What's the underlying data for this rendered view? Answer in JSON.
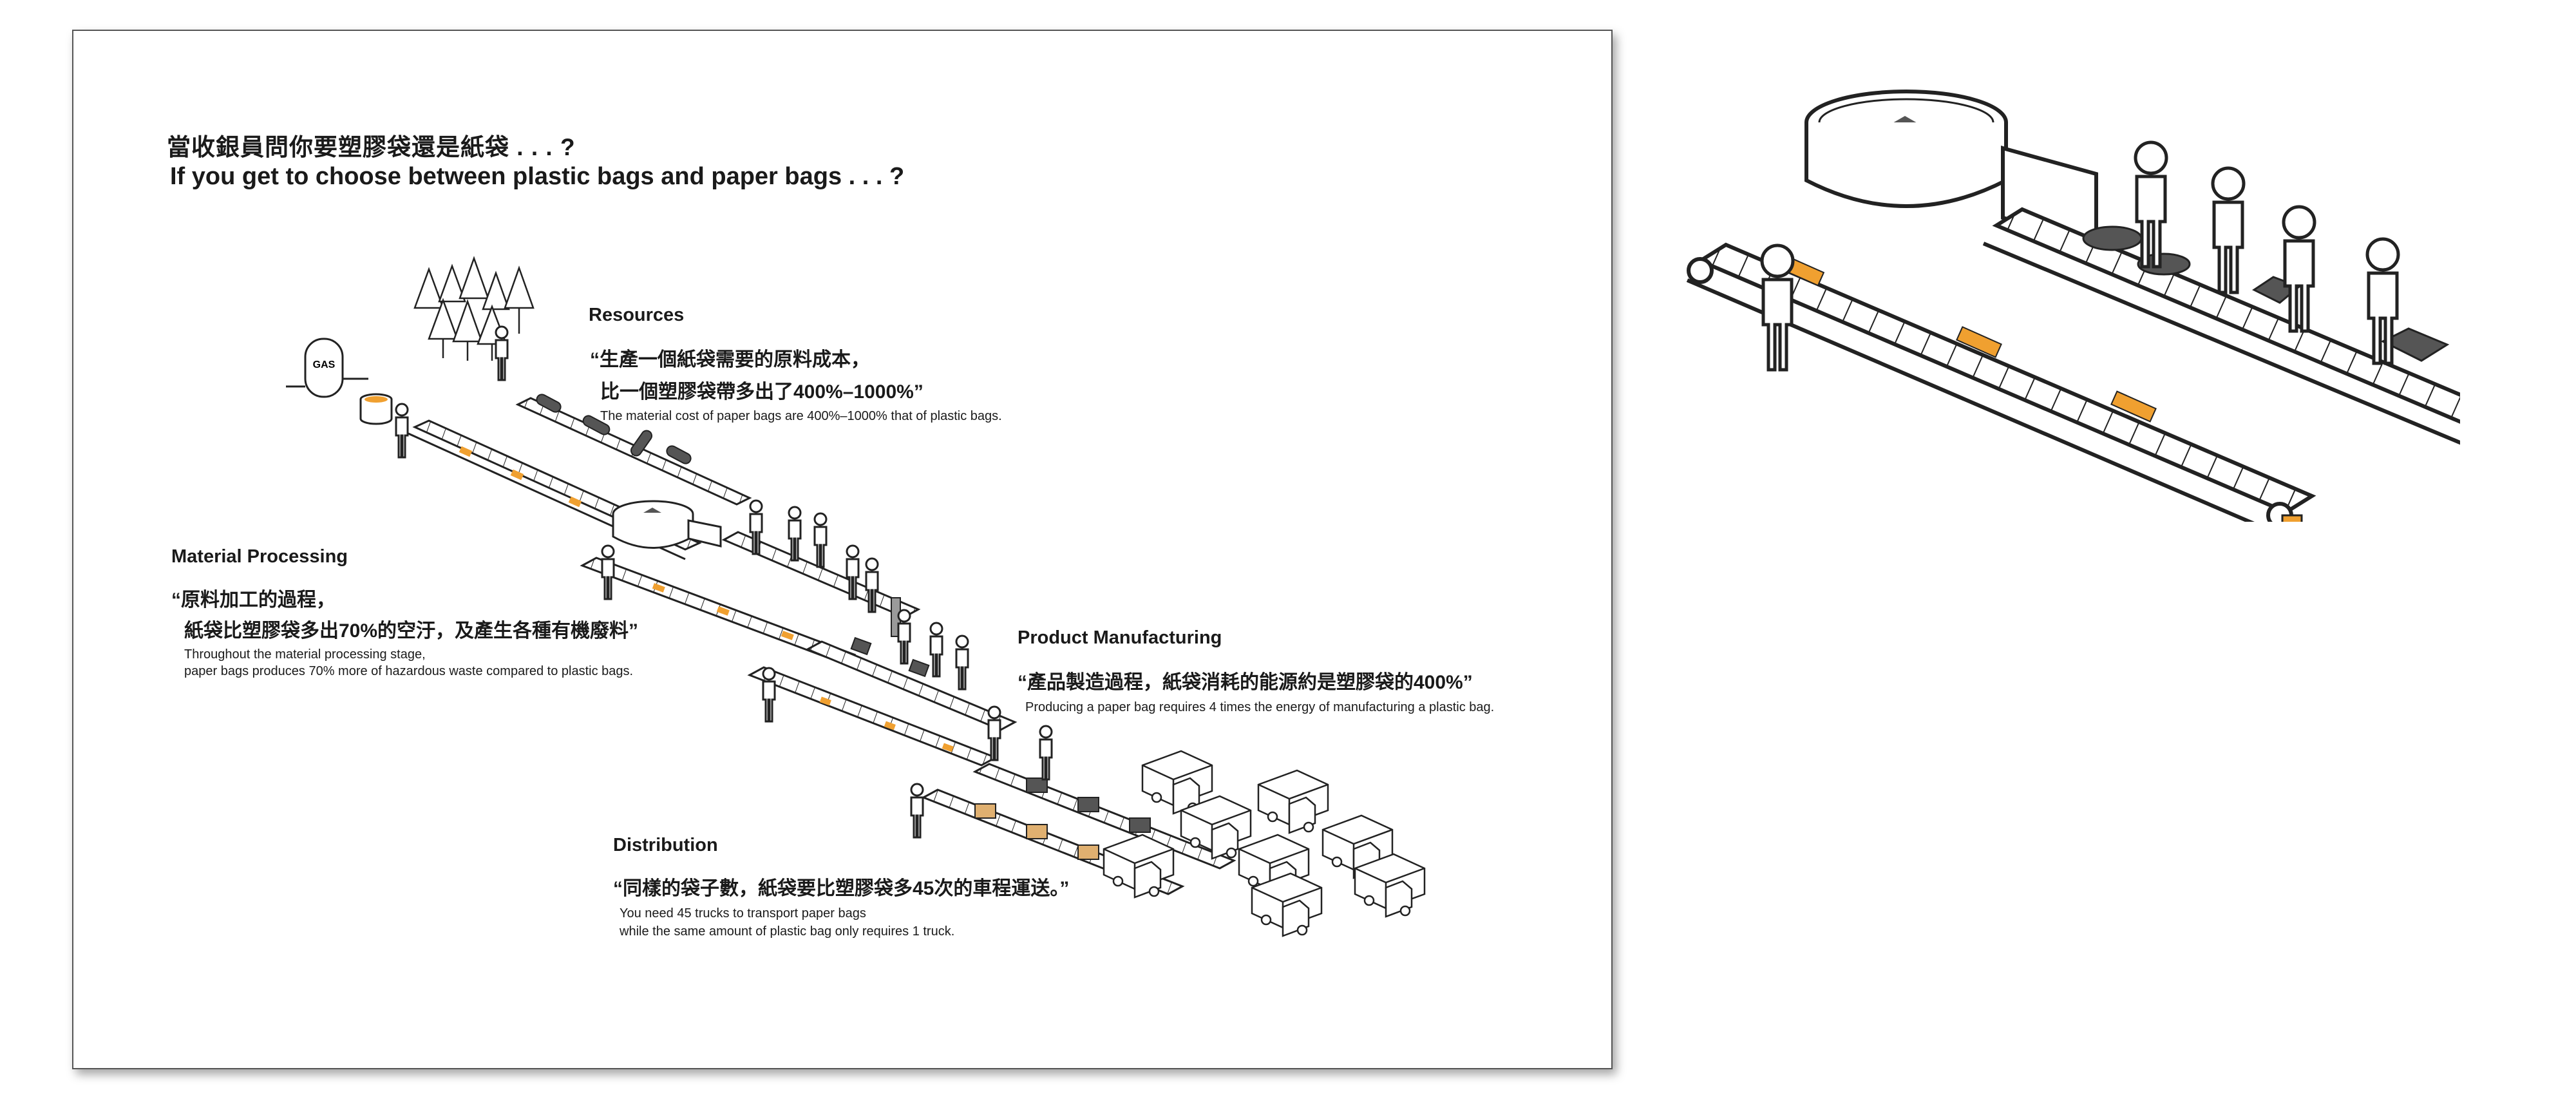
{
  "title": {
    "zh": "當收銀員問你要塑膠袋還是紙袋 . . . ?",
    "en": "If you get to choose between plastic bags and paper bags . . . ?"
  },
  "gas_tank_label": "GAS",
  "sections": {
    "resources": {
      "heading": "Resources",
      "quote_line1": "“生產一個紙袋需要的原料成本，",
      "quote_line2": "比一個塑膠袋帶多出了400%–1000%”",
      "note": "The material cost of paper bags are 400%–1000% that of plastic bags."
    },
    "material_processing": {
      "heading": "Material Processing",
      "quote_line1": "“原料加工的過程，",
      "quote_line2": "紙袋比塑膠袋多出70%的空汙，及產生各種有機廢料”",
      "note_line1": "Throughout the material processing stage,",
      "note_line2": "paper bags produces 70% more of hazardous waste compared to plastic bags."
    },
    "product_manufacturing": {
      "heading": "Product Manufacturing",
      "quote": "“產品製造過程，紙袋消耗的能源約是塑膠袋的400%”",
      "note": "Producing a paper bag requires 4 times the energy of manufacturing a plastic bag."
    },
    "distribution": {
      "heading": "Distribution",
      "quote": "“同樣的袋子數，紙袋要比塑膠袋多45次的車程運送。”",
      "note_line1": "You need 45 trucks to transport paper bags",
      "note_line2": "while the same amount of plastic bag only requires 1 truck."
    }
  },
  "colors": {
    "accent": "#f0a030",
    "ink": "#1a1a1a",
    "grey": "#9a9a9a",
    "dark_grey": "#555555"
  }
}
